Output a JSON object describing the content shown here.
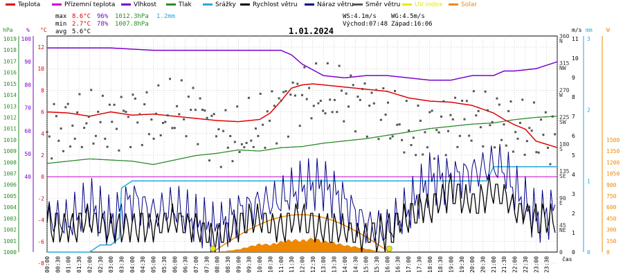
{
  "legend": [
    {
      "label": "Teplota",
      "color": "#e00000"
    },
    {
      "label": "Přízemní teplota",
      "color": "#cc00cc"
    },
    {
      "label": "Vlhkost",
      "color": "#7a00cc"
    },
    {
      "label": "Tlak",
      "color": "#2a8a2a"
    },
    {
      "label": "Srážky",
      "color": "#22aadd"
    },
    {
      "label": "Rychlost větru",
      "color": "#000000"
    },
    {
      "label": "Náraz větru",
      "color": "#000088"
    },
    {
      "label": "Směr větru",
      "color": "#555555"
    },
    {
      "label": "UV index",
      "color": "#e8e800"
    },
    {
      "label": "Solar",
      "color": "#ee8800"
    }
  ],
  "stats": {
    "max_label": "max",
    "max_temp": "8.6°C",
    "max_hum": "96%",
    "max_press": "1012.3hPa",
    "max_rain": "1.2mm",
    "min_label": "min",
    "min_temp": "2.7°C",
    "min_hum": "78%",
    "min_press": "1007.8hPa",
    "avg_label": "avg",
    "avg_temp": "5.6°C",
    "ws": "WS:4.1m/s",
    "wg": "WG:4.5m/s",
    "sunrise": "Východ:07:48",
    "sunset": "Západ:16:06"
  },
  "chart_data": {
    "type": "line",
    "title": "1.01.2024",
    "xlabel": "čas",
    "x_ticks": [
      "00:00",
      "00:30",
      "01:00",
      "01:30",
      "02:00",
      "02:30",
      "03:00",
      "03:30",
      "04:00",
      "04:30",
      "05:00",
      "05:30",
      "06:00",
      "06:30",
      "07:00",
      "07:30",
      "08:00",
      "08:30",
      "09:00",
      "09:30",
      "10:00",
      "10:30",
      "11:00",
      "11:30",
      "12:00",
      "12:30",
      "13:00",
      "13:30",
      "14:00",
      "14:30",
      "15:00",
      "15:30",
      "16:00",
      "16:30",
      "17:00",
      "17:30",
      "18:00",
      "18:30",
      "19:00",
      "19:30",
      "20:00",
      "20:30",
      "21:00",
      "21:30",
      "22:00",
      "22:30",
      "23:00",
      "23:30"
    ],
    "axes": {
      "pressure": {
        "label": "hPa",
        "ticks": [
          "1019",
          "1018",
          "1017",
          "1016",
          "1015",
          "1014",
          "1013",
          "1012",
          "1011",
          "1010",
          "1009",
          "1008",
          "1007",
          "1006",
          "1005",
          "1004",
          "1003",
          "1002",
          "1001",
          "1000"
        ],
        "color": "#2a8a2a"
      },
      "humidity": {
        "label": "%",
        "ticks": [
          "100",
          "90",
          "80",
          "70",
          "60",
          "50",
          "40"
        ],
        "color": "#7a00cc"
      },
      "temperature": {
        "label": "°C",
        "ticks": [
          "12",
          "10",
          "8",
          "6",
          "4",
          "2",
          "0",
          "-2",
          "-4",
          "-6",
          "-8"
        ],
        "color": "#e00000"
      },
      "wind_dir": {
        "ticks": [
          "360",
          "N",
          "315",
          "NW",
          "270",
          "W",
          "225",
          "SW",
          "180",
          "S",
          "135",
          "SE",
          "90",
          "E",
          "45",
          "NE",
          "0"
        ]
      },
      "wind_speed": {
        "label": "m/s",
        "ticks": [
          "11",
          "10",
          "9",
          "8",
          "7",
          "6",
          "5",
          "4",
          "3",
          "2",
          "1",
          "0"
        ]
      },
      "rain": {
        "label": "mm",
        "ticks": [
          "3",
          "2",
          "1",
          "0"
        ],
        "color": "#22aadd"
      },
      "solar": {
        "label": "W",
        "ticks": [
          "1500",
          "1350",
          "1200",
          "1050",
          "900",
          "750",
          "600",
          "450",
          "300",
          "150",
          "0"
        ],
        "color": "#ee8800"
      }
    },
    "series": [
      {
        "name": "Teplota",
        "unit": "°C",
        "x_hours": [
          0,
          1,
          2,
          3,
          4,
          5,
          6,
          7,
          8,
          9,
          10,
          10.5,
          11,
          11.5,
          12,
          12.5,
          13,
          13.5,
          14,
          15,
          16,
          16.5,
          17,
          18,
          19,
          20,
          21,
          21.5,
          22,
          22.5,
          23,
          24
        ],
        "values": [
          6.0,
          5.9,
          5.6,
          6.0,
          5.7,
          5.8,
          5.6,
          5.4,
          5.2,
          5.1,
          5.3,
          5.9,
          7.0,
          8.2,
          8.5,
          8.6,
          8.5,
          8.4,
          8.3,
          8.1,
          7.9,
          7.6,
          7.3,
          7.0,
          6.9,
          6.6,
          5.9,
          5.3,
          4.8,
          4.4,
          3.3,
          2.7
        ]
      },
      {
        "name": "Vlhkost",
        "unit": "%",
        "x_hours": [
          0,
          3,
          5,
          8,
          11,
          11.5,
          12,
          13,
          14,
          15,
          16,
          17,
          18,
          19,
          20,
          21,
          21.5,
          22,
          23,
          24
        ],
        "values": [
          96,
          96,
          95,
          95,
          95,
          93,
          89,
          84,
          83,
          84,
          84,
          83,
          82,
          82,
          84,
          84,
          86,
          86,
          87,
          90
        ]
      },
      {
        "name": "Tlak",
        "unit": "hPa",
        "x_hours": [
          0,
          2,
          4,
          5,
          6,
          7,
          8,
          9,
          10,
          11,
          12,
          13,
          14,
          15,
          16,
          17,
          18,
          19,
          20,
          21,
          22,
          23,
          24
        ],
        "values": [
          1007.9,
          1008.3,
          1008.1,
          1007.8,
          1008.2,
          1008.6,
          1008.8,
          1009.1,
          1009.0,
          1009.3,
          1009.4,
          1009.7,
          1009.9,
          1010.1,
          1010.4,
          1010.7,
          1011.0,
          1011.2,
          1011.4,
          1011.5,
          1011.8,
          1012.0,
          1012.1
        ]
      },
      {
        "name": "Srážky",
        "unit": "mm",
        "x_hours": [
          0,
          2,
          2.5,
          3,
          3.4,
          3.5,
          4,
          20.7,
          21,
          24
        ],
        "values": [
          0,
          0,
          0.1,
          0.1,
          0.2,
          0.9,
          1.0,
          1.0,
          1.2,
          1.2
        ]
      },
      {
        "name": "Rychlost větru",
        "unit": "m/s",
        "x_hours": [
          0,
          1,
          2,
          3,
          4,
          5,
          6,
          7,
          8,
          9,
          10,
          11,
          12,
          13,
          14,
          15,
          16,
          17,
          18,
          19,
          20,
          21,
          22,
          23,
          24
        ],
        "values": [
          1.5,
          1.2,
          1.6,
          1.2,
          1.3,
          1.4,
          1.7,
          1.3,
          0.8,
          1.5,
          1.7,
          1.3,
          1.8,
          1.2,
          1.0,
          0.9,
          1.0,
          1.9,
          2.3,
          3.2,
          2.5,
          3.3,
          2.3,
          1.7,
          1.9
        ]
      },
      {
        "name": "Náraz větru",
        "unit": "m/s",
        "x_hours": [
          0,
          1,
          2,
          3,
          4,
          5,
          6,
          7,
          8,
          9,
          10,
          11,
          12,
          13,
          14,
          15,
          16,
          17,
          18,
          19,
          20,
          21,
          21.5,
          22,
          23,
          24
        ],
        "values": [
          1.8,
          1.5,
          2.5,
          1.6,
          2.8,
          2.0,
          2.3,
          1.6,
          1.2,
          2.1,
          2.5,
          2.7,
          3.4,
          3.5,
          2.6,
          1.4,
          1.1,
          2.2,
          3.8,
          3.8,
          4.1,
          4.5,
          4.3,
          3.2,
          1.8,
          2.2
        ]
      },
      {
        "name": "Směr větru",
        "unit": "°",
        "x_hours": [
          0,
          1,
          2,
          3,
          4,
          5,
          6,
          7,
          8,
          9,
          10,
          11,
          12,
          13,
          14,
          15,
          16,
          17,
          18,
          19,
          20,
          21,
          22,
          23,
          24
        ],
        "values": [
          200,
          210,
          220,
          215,
          230,
          220,
          235,
          240,
          195,
          185,
          210,
          245,
          265,
          255,
          260,
          250,
          230,
          195,
          200,
          215,
          225,
          220,
          205,
          200,
          190
        ]
      },
      {
        "name": "Solar",
        "unit": "W",
        "x_hours": [
          7.8,
          8.5,
          9,
          9.5,
          10,
          10.5,
          11,
          11.5,
          12,
          12.5,
          13,
          13.5,
          14,
          14.5,
          15,
          15.5,
          16.1
        ],
        "values": [
          0,
          20,
          40,
          80,
          120,
          110,
          150,
          180,
          170,
          200,
          160,
          140,
          100,
          80,
          50,
          20,
          0
        ]
      }
    ],
    "uv_markers": [
      {
        "label": "Východ",
        "time": "07:48"
      },
      {
        "label": "Západ",
        "time": "16:06"
      }
    ]
  }
}
